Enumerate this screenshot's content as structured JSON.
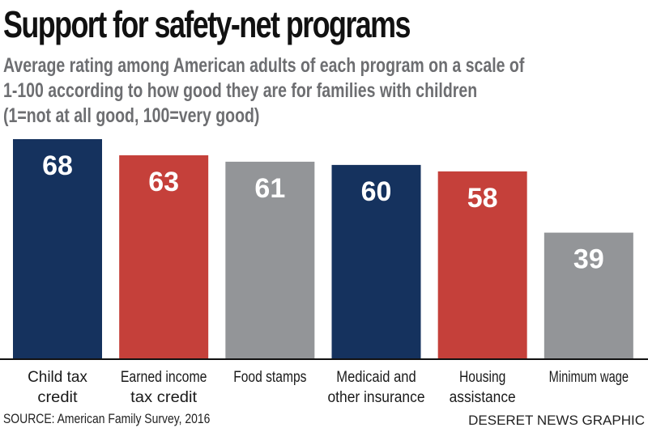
{
  "chart_data": {
    "type": "bar",
    "title": "Support for safety-net programs",
    "subtitle_lines": [
      "Average rating among American adults of each program on a scale of",
      "1-100 according to how good they are for families with children",
      "(1=not at all good, 100=very good)"
    ],
    "categories": [
      [
        "Child tax",
        "credit"
      ],
      [
        "Earned income",
        "tax credit"
      ],
      [
        "Food stamps"
      ],
      [
        "Medicaid and",
        "other insurance"
      ],
      [
        "Housing",
        "assistance"
      ],
      [
        "Minimum wage"
      ]
    ],
    "values": [
      68,
      63,
      61,
      60,
      58,
      39
    ],
    "bar_colors": [
      "#15325e",
      "#c5403a",
      "#939598",
      "#15325e",
      "#c5403a",
      "#939598"
    ],
    "xlabel": "",
    "ylabel": "",
    "ylim": [
      0,
      68
    ],
    "grid": false,
    "legend": "none",
    "data_labels": true
  },
  "footer": {
    "source": "SOURCE: American Family Survey, 2016",
    "credit": "DESERET NEWS GRAPHIC"
  }
}
